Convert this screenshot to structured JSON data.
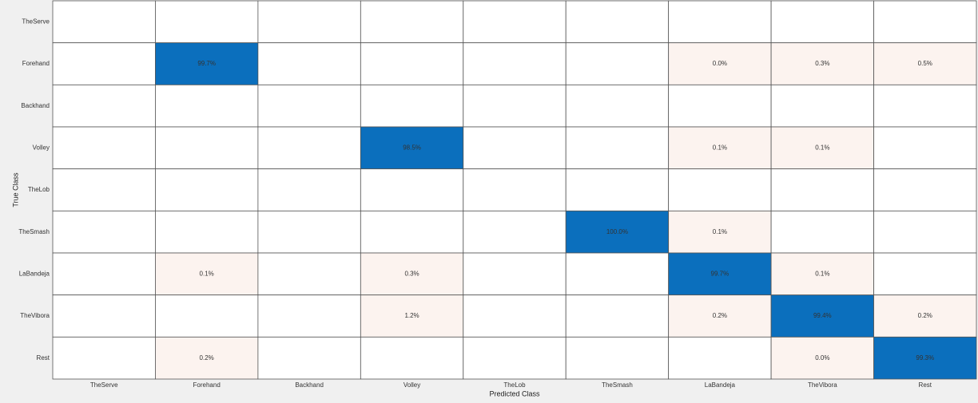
{
  "chart_data": {
    "type": "heatmap",
    "xlabel": "Predicted Class",
    "ylabel": "True Class",
    "x_categories": [
      "TheServe",
      "Forehand",
      "Backhand",
      "Volley",
      "TheLob",
      "TheSmash",
      "LaBandeja",
      "TheVibora",
      "Rest"
    ],
    "y_categories": [
      "TheServe",
      "Forehand",
      "Backhand",
      "Volley",
      "TheLob",
      "TheSmash",
      "LaBandeja",
      "TheVibora",
      "Rest"
    ],
    "values": [
      [
        null,
        null,
        null,
        null,
        null,
        null,
        null,
        null,
        null
      ],
      [
        null,
        99.7,
        null,
        null,
        null,
        null,
        0,
        0.3,
        0.5
      ],
      [
        null,
        null,
        null,
        null,
        null,
        null,
        null,
        null,
        null
      ],
      [
        null,
        null,
        null,
        98.5,
        null,
        null,
        0.1,
        0.1,
        null
      ],
      [
        null,
        null,
        null,
        null,
        null,
        null,
        null,
        null,
        null
      ],
      [
        null,
        null,
        null,
        null,
        null,
        100,
        0.1,
        null,
        null
      ],
      [
        null,
        0.1,
        null,
        0.3,
        null,
        null,
        99.7,
        0.1,
        null
      ],
      [
        null,
        null,
        null,
        1.2,
        null,
        null,
        0.2,
        99.4,
        0.2
      ],
      [
        null,
        0.2,
        null,
        null,
        null,
        null,
        null,
        0,
        99.3
      ]
    ],
    "value_labels": [
      [
        null,
        null,
        null,
        null,
        null,
        null,
        null,
        null,
        null
      ],
      [
        null,
        "99.7%",
        null,
        null,
        null,
        null,
        "0.0%",
        "0.3%",
        "0.5%"
      ],
      [
        null,
        null,
        null,
        null,
        null,
        null,
        null,
        null,
        null
      ],
      [
        null,
        null,
        null,
        "98.5%",
        null,
        null,
        "0.1%",
        "0.1%",
        null
      ],
      [
        null,
        null,
        null,
        null,
        null,
        null,
        null,
        null,
        null
      ],
      [
        null,
        null,
        null,
        null,
        null,
        "100.0%",
        "0.1%",
        null,
        null
      ],
      [
        null,
        "0.1%",
        null,
        "0.3%",
        null,
        null,
        "99.7%",
        "0.1%",
        null
      ],
      [
        null,
        null,
        null,
        "1.2%",
        null,
        null,
        "0.2%",
        "99.4%",
        "0.2%"
      ],
      [
        null,
        "0.2%",
        null,
        null,
        null,
        null,
        null,
        "0.0%",
        "99.3%"
      ]
    ],
    "diagonal_color": "#0b6fbd",
    "offdiagonal_color": "#fcf3ef"
  }
}
